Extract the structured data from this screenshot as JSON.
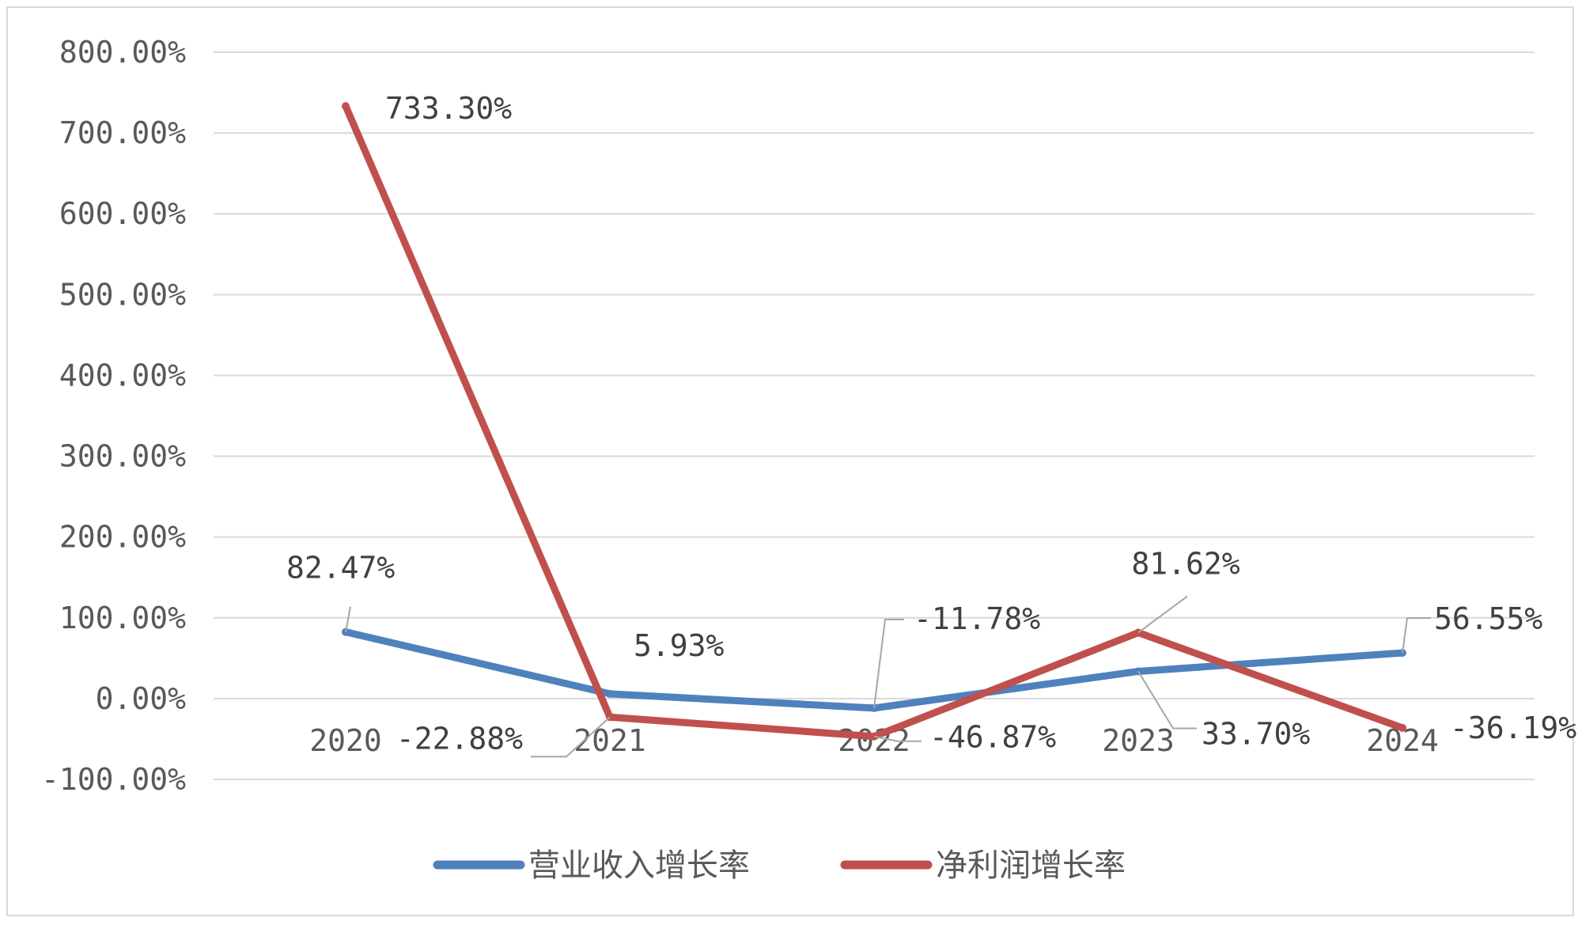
{
  "chart_data": {
    "type": "line",
    "categories": [
      "2020",
      "2021",
      "2022",
      "2023",
      "2024"
    ],
    "y_tick_labels": [
      "800.00%",
      "700.00%",
      "600.00%",
      "500.00%",
      "400.00%",
      "300.00%",
      "200.00%",
      "100.00%",
      "0.00%",
      "-100.00%"
    ],
    "ylim": [
      -100,
      800
    ],
    "grid": true,
    "legend_position": "bottom",
    "series": [
      {
        "name": "营业收入增长率",
        "color": "#4f81bd",
        "values": [
          82.47,
          5.93,
          -11.78,
          33.7,
          56.55
        ],
        "labels": [
          "82.47%",
          "5.93%",
          "-11.78%",
          "33.70%",
          "56.55%"
        ]
      },
      {
        "name": "净利润增长率",
        "color": "#c0504d",
        "values": [
          733.3,
          -22.88,
          -46.87,
          81.62,
          -36.19
        ],
        "labels": [
          "733.30%",
          "-22.88%",
          "-46.87%",
          "81.62%",
          "-36.19%"
        ]
      }
    ]
  }
}
